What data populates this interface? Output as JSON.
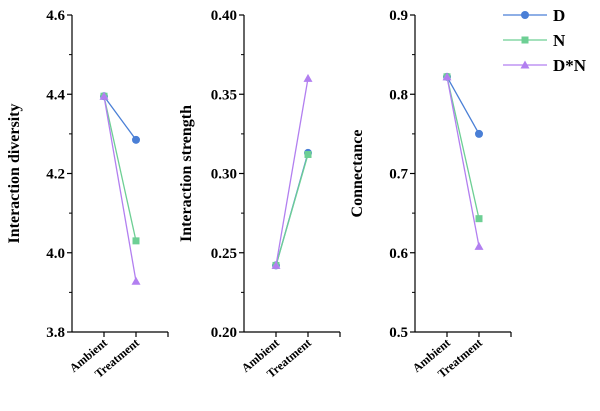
{
  "chart_data": [
    {
      "type": "line",
      "ylabel": "Interaction diversity",
      "categories": [
        "Ambient",
        "Treatment"
      ],
      "ylim": [
        3.8,
        4.6
      ],
      "yticks": [
        "3.8",
        "4.0",
        "4.2",
        "4.4",
        "4.6"
      ],
      "series": [
        {
          "name": "D",
          "values": [
            4.395,
            4.285
          ]
        },
        {
          "name": "N",
          "values": [
            4.395,
            4.03
          ]
        },
        {
          "name": "D*N",
          "values": [
            4.395,
            3.928
          ]
        }
      ]
    },
    {
      "type": "line",
      "ylabel": "Interaction strength",
      "categories": [
        "Ambient",
        "Treatment"
      ],
      "ylim": [
        0.2,
        0.4
      ],
      "yticks": [
        "0.20",
        "0.25",
        "0.30",
        "0.35",
        "0.40"
      ],
      "series": [
        {
          "name": "D",
          "values": [
            0.242,
            0.313
          ]
        },
        {
          "name": "N",
          "values": [
            0.242,
            0.312
          ]
        },
        {
          "name": "D*N",
          "values": [
            0.242,
            0.36
          ]
        }
      ]
    },
    {
      "type": "line",
      "ylabel": "Connectance",
      "categories": [
        "Ambient",
        "Treatment"
      ],
      "ylim": [
        0.5,
        0.9
      ],
      "yticks": [
        "0.5",
        "0.6",
        "0.7",
        "0.8",
        "0.9"
      ],
      "series": [
        {
          "name": "D",
          "values": [
            0.822,
            0.75
          ]
        },
        {
          "name": "N",
          "values": [
            0.822,
            0.643
          ]
        },
        {
          "name": "D*N",
          "values": [
            0.822,
            0.608
          ]
        }
      ]
    }
  ],
  "legend": {
    "placement": "top-right",
    "items": [
      {
        "label": "D",
        "color": "#4a7fd6",
        "marker": "circle"
      },
      {
        "label": "N",
        "color": "#6dcf94",
        "marker": "square"
      },
      {
        "label": "D*N",
        "color": "#b27ff0",
        "marker": "triangle"
      }
    ]
  }
}
